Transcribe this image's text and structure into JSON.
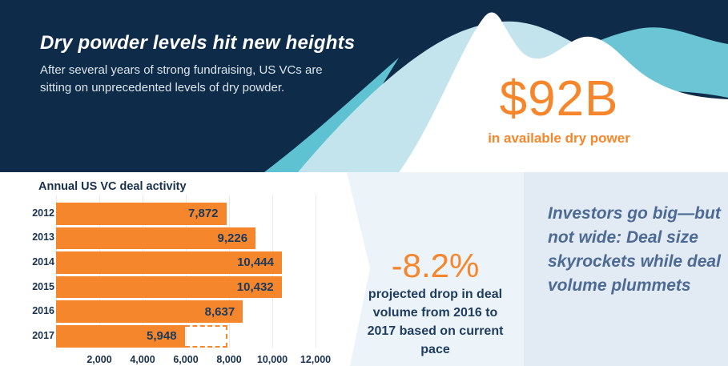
{
  "colors": {
    "navy": "#0e2c49",
    "orange_accent": "#f5862b",
    "teal_medium": "#5ec2d2",
    "teal_light": "#c3e4ec",
    "panel_mid_bg": "#edf4f9",
    "panel_right_bg": "#e2eaf3",
    "callout_text": "#4d6a94",
    "chart_text_navy": "#17314e"
  },
  "hero": {
    "title": "Dry powder levels hit new heights",
    "subtitle": "After several years of strong fundraising, US VCs are sitting on unprecedented levels of dry powder.",
    "stat_value": "$92B",
    "stat_caption": "in available dry power"
  },
  "stat_panel": {
    "value": "-8.2%",
    "caption": "projected drop in deal volume from 2016 to 2017 based on current pace"
  },
  "callout": {
    "text": "Investors go big—but not wide: Deal size skyrockets while deal volume plummets"
  },
  "chart_data": {
    "type": "bar",
    "orientation": "horizontal",
    "title": "Annual US VC deal activity",
    "categories": [
      "2012",
      "2013",
      "2014",
      "2015",
      "2016",
      "2017"
    ],
    "values": [
      7872,
      9226,
      10444,
      10432,
      8637,
      5948
    ],
    "value_labels": [
      "7,872",
      "9,226",
      "10,444",
      "10,432",
      "8,637",
      "5,948"
    ],
    "projection": {
      "category": "2017",
      "from": 5948,
      "to": 7929,
      "style": "dashed-outline"
    },
    "x_ticks": [
      2000,
      4000,
      6000,
      8000,
      10000,
      12000
    ],
    "x_tick_labels": [
      "2,000",
      "4,000",
      "6,000",
      "8,000",
      "10,000",
      "12,000"
    ],
    "xlim": [
      0,
      12000
    ],
    "grid": true,
    "bar_color": "#f5862b"
  }
}
